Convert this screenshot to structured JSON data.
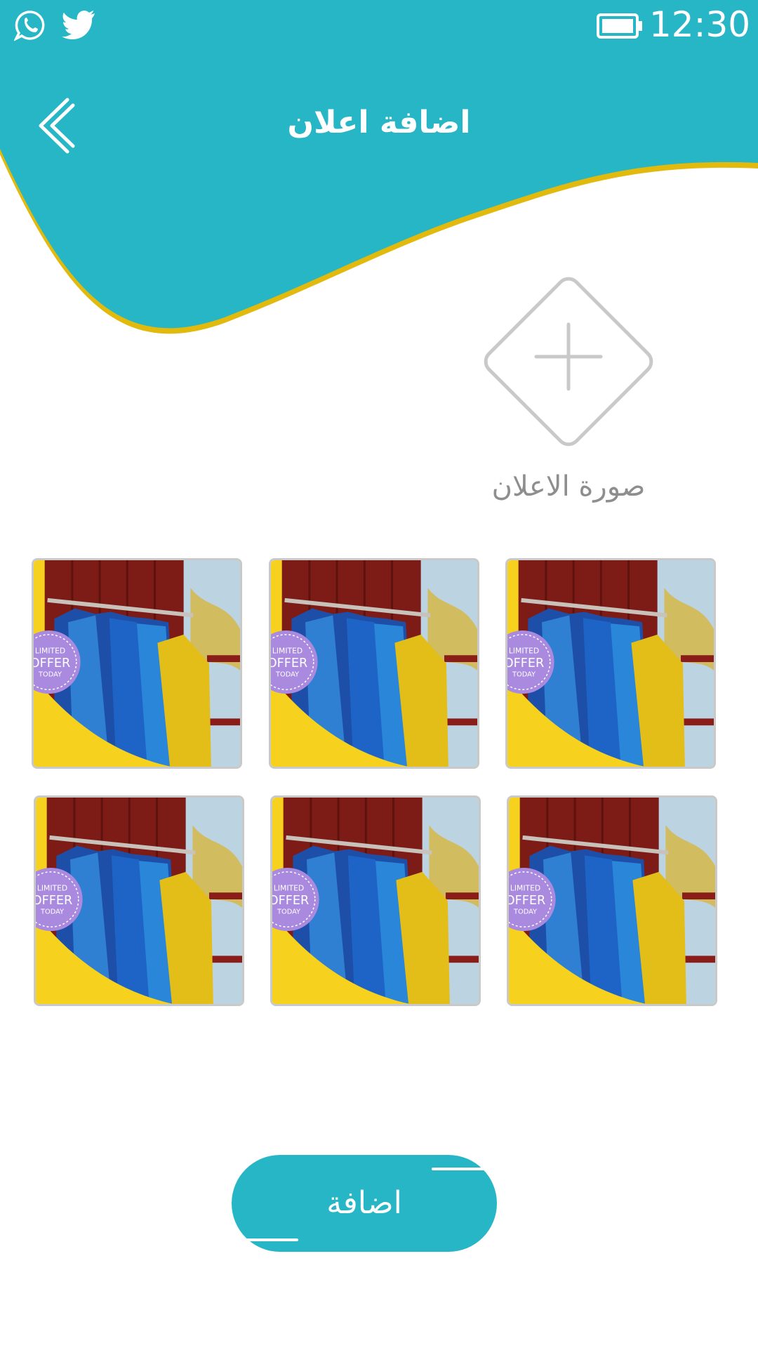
{
  "status_bar": {
    "time": "12:30",
    "left_icons": [
      "whatsapp-icon",
      "twitter-icon"
    ],
    "right_icons": [
      "battery-icon"
    ]
  },
  "header": {
    "title": "اضافة اعلان",
    "back_icon": "chevron-left-icon"
  },
  "upload": {
    "label": "صورة الاعلان",
    "icon": "plus-icon"
  },
  "gallery": {
    "badge_lines": [
      "LIMITED",
      "OFFER",
      "TODAY"
    ],
    "items": [
      {
        "id": 1
      },
      {
        "id": 2
      },
      {
        "id": 3
      },
      {
        "id": 4
      },
      {
        "id": 5
      },
      {
        "id": 6
      }
    ]
  },
  "actions": {
    "add_label": "اضافة"
  },
  "colors": {
    "primary": "#26b6c6",
    "accent": "#e2b90d",
    "placeholder": "#c9c9c9",
    "label": "#8e8e8e"
  }
}
